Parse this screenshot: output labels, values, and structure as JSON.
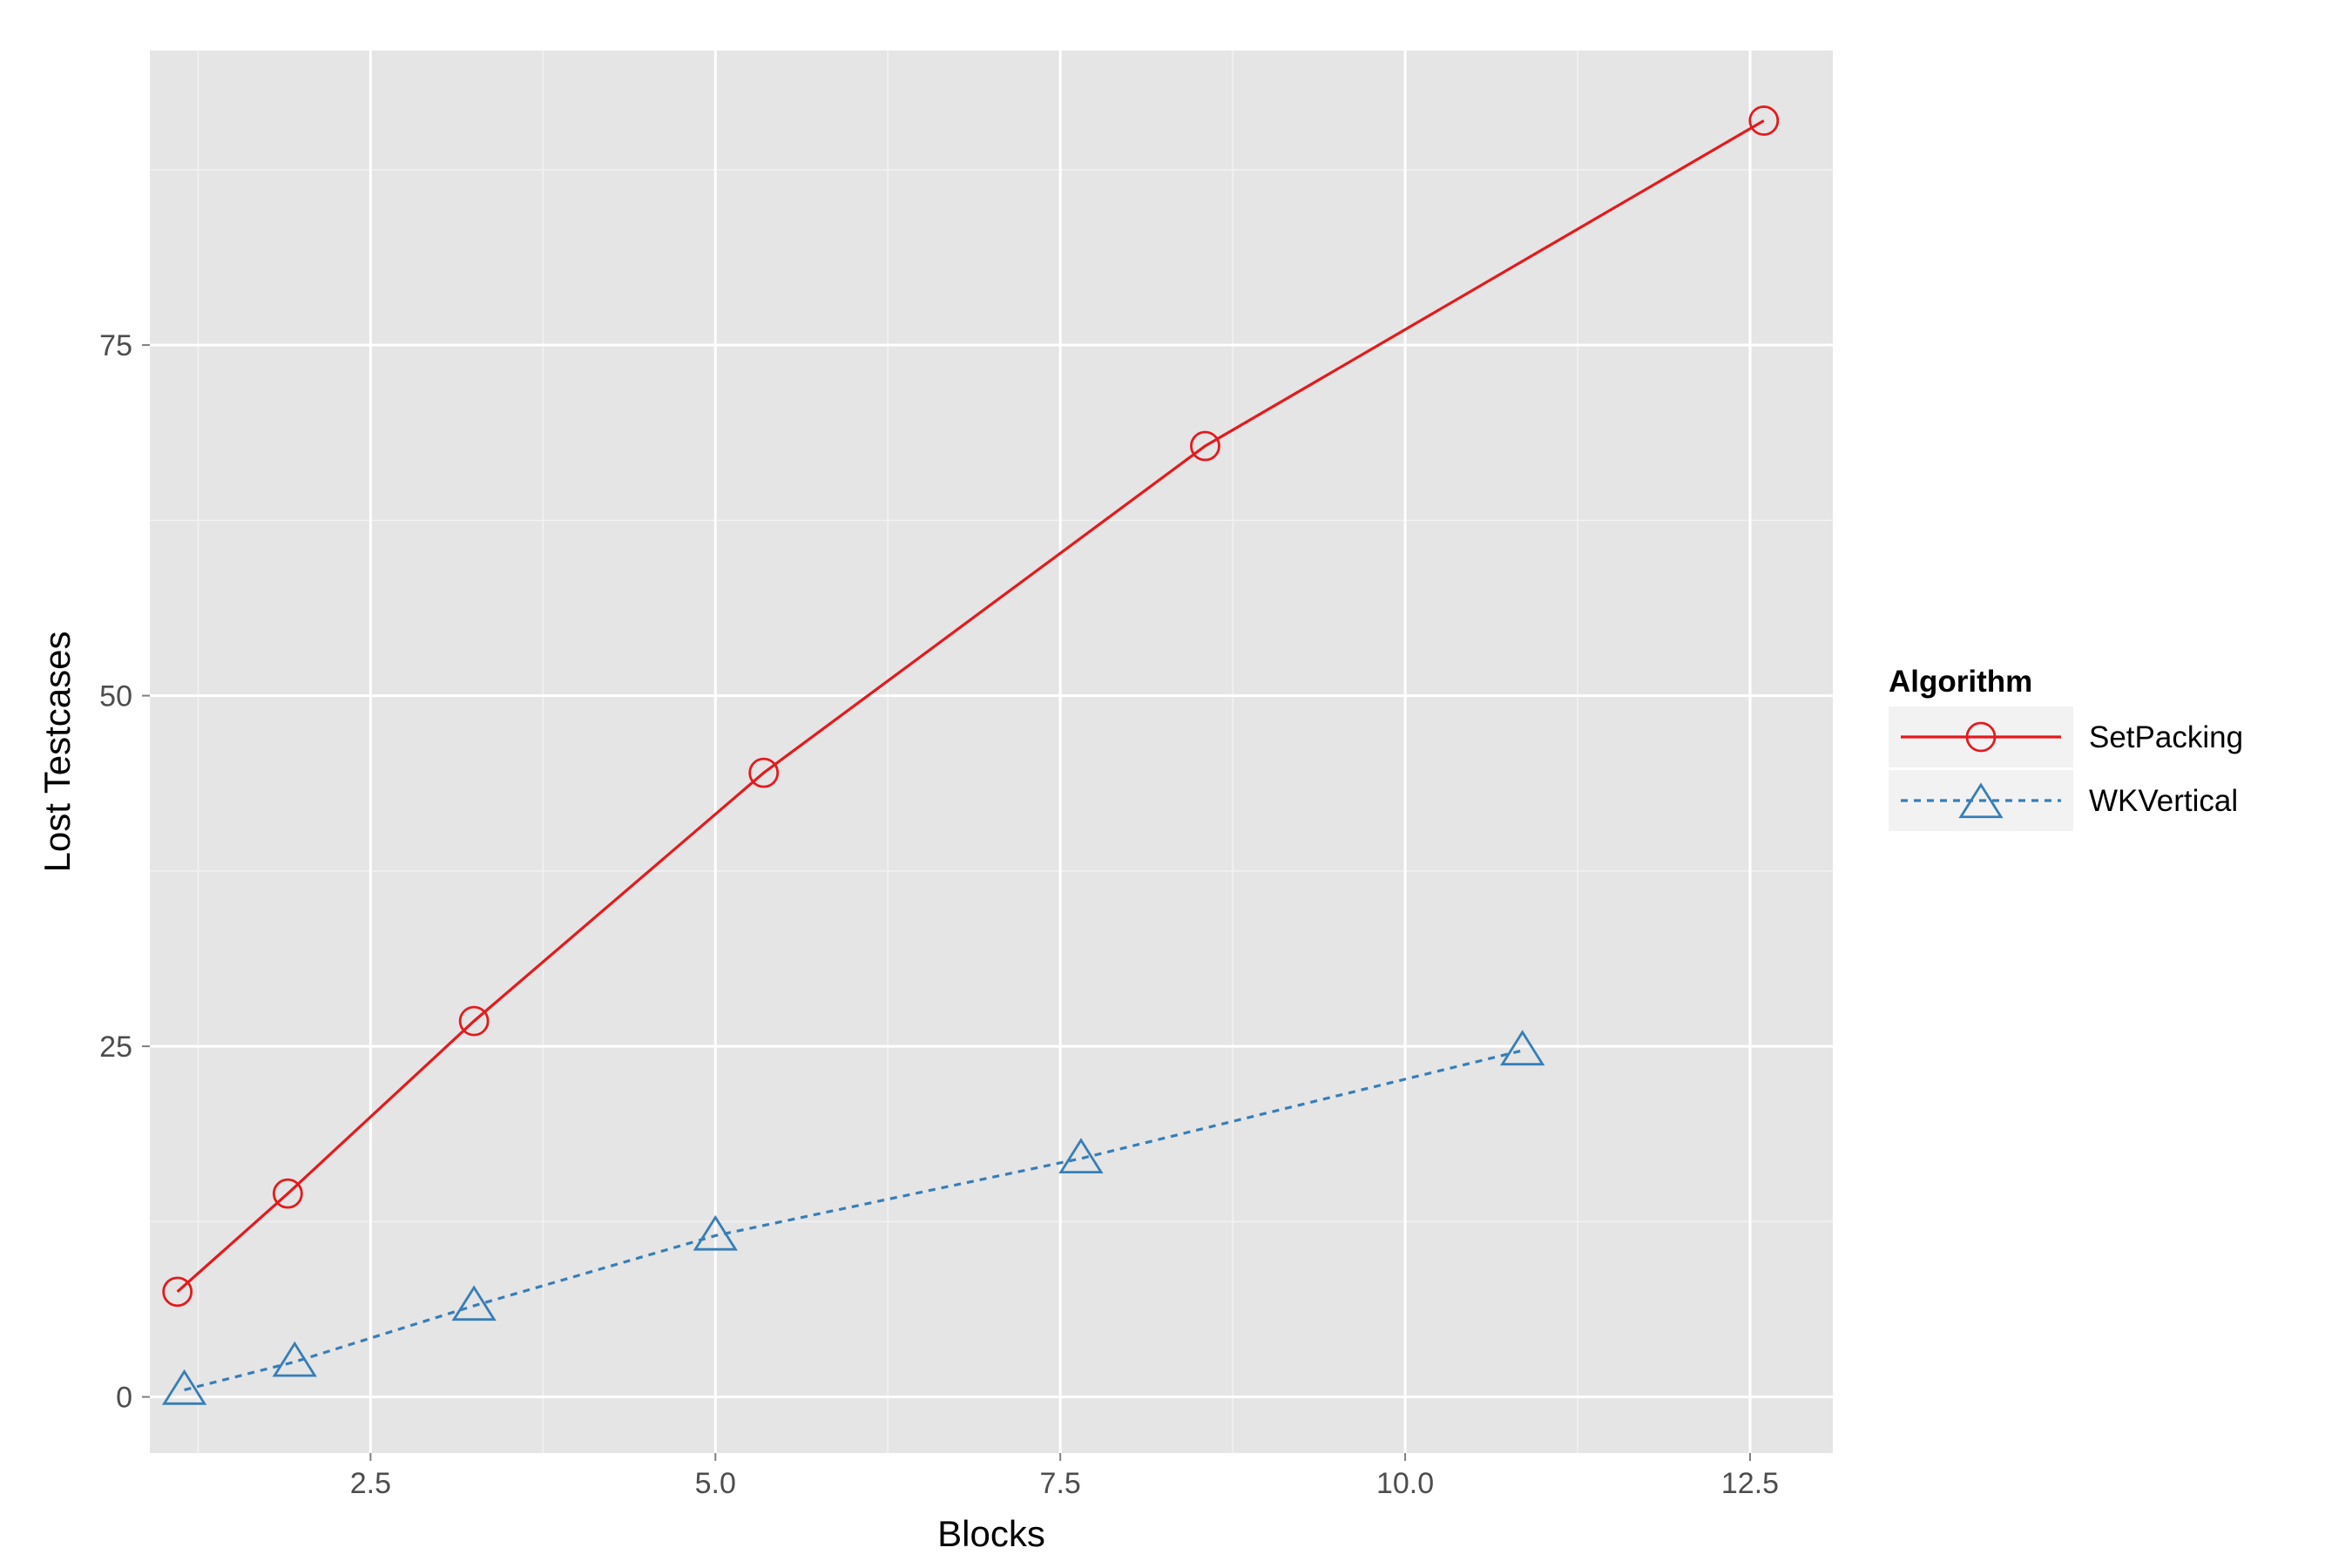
{
  "chart_data": {
    "type": "line",
    "xlabel": "Blocks",
    "ylabel": "Lost Testcases",
    "xlim": [
      0.9,
      13.1
    ],
    "ylim": [
      -4,
      96
    ],
    "xticks": [
      2.5,
      5.0,
      7.5,
      10.0,
      12.5
    ],
    "xtick_labels": [
      "2.5",
      "5.0",
      "7.5",
      "10.0",
      "12.5"
    ],
    "yticks": [
      0,
      25,
      50,
      75
    ],
    "ytick_labels": [
      "0",
      "25",
      "50",
      "75"
    ],
    "grid": true,
    "legend": {
      "title": "Algorithm",
      "position": "right"
    },
    "series": [
      {
        "name": "SetPacking",
        "color": "#e41a1c",
        "linestyle": "solid",
        "marker": "circle",
        "x": [
          1.1,
          1.9,
          3.25,
          5.35,
          8.55,
          12.6
        ],
        "y": [
          7.5,
          14.5,
          26.8,
          44.5,
          67.8,
          91.0
        ]
      },
      {
        "name": "WKVertical",
        "color": "#377eb8",
        "linestyle": "dotted",
        "marker": "triangle",
        "x": [
          1.15,
          1.95,
          3.25,
          5.0,
          7.65,
          10.85
        ],
        "y": [
          0.5,
          2.5,
          6.5,
          11.5,
          17.0,
          24.7
        ]
      }
    ]
  }
}
